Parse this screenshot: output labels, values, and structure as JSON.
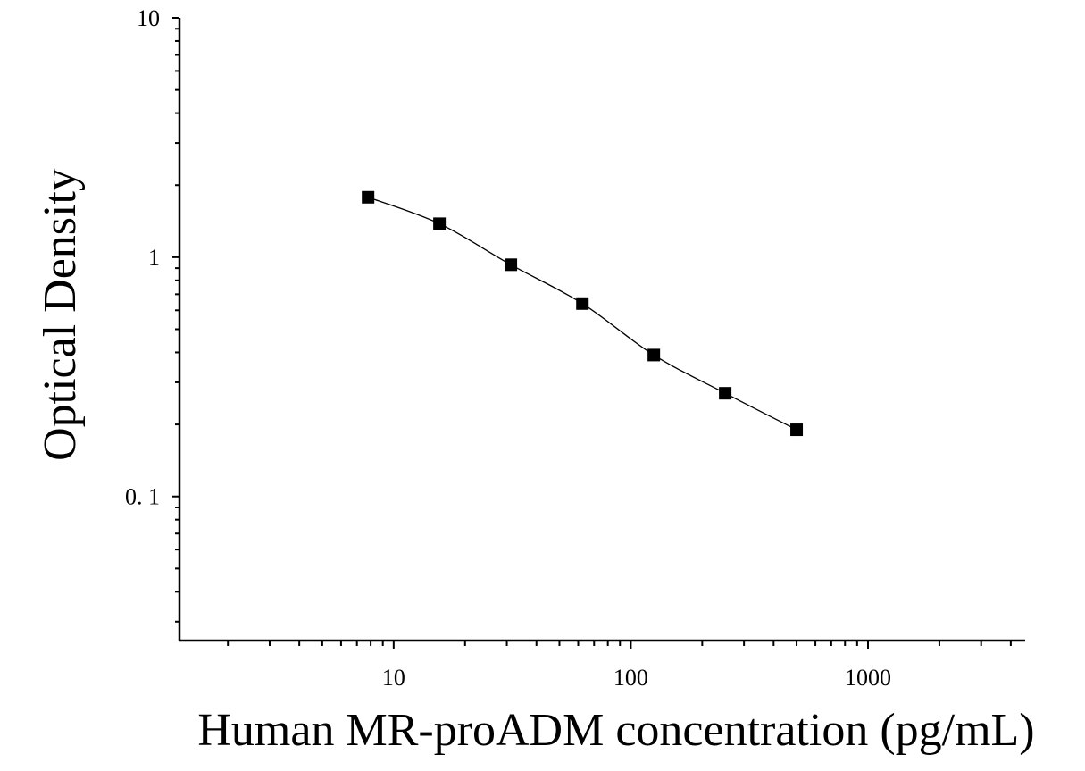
{
  "chart_data": {
    "type": "scatter",
    "title": "",
    "xlabel": "Human MR-proADM concentration (pg/mL)",
    "ylabel": "Optical Density",
    "x_scale": "log",
    "y_scale": "log",
    "xlim": [
      1.25,
      4600
    ],
    "ylim": [
      0.025,
      10
    ],
    "x_ticks": [
      {
        "value": 10,
        "label": "10"
      },
      {
        "value": 100,
        "label": "100"
      },
      {
        "value": 1000,
        "label": "1000"
      }
    ],
    "y_ticks": [
      {
        "value": 10,
        "label": "10"
      },
      {
        "value": 1,
        "label": "1"
      },
      {
        "value": 0.1,
        "label": "0. 1"
      }
    ],
    "grid": false,
    "legend": "none",
    "series": [
      {
        "marker": "square",
        "color": "#000000",
        "points": [
          {
            "x": 7.8,
            "y": 1.78
          },
          {
            "x": 15.6,
            "y": 1.38
          },
          {
            "x": 31.2,
            "y": 0.93
          },
          {
            "x": 62.5,
            "y": 0.64
          },
          {
            "x": 125,
            "y": 0.39
          },
          {
            "x": 250,
            "y": 0.27
          },
          {
            "x": 500,
            "y": 0.19
          }
        ]
      }
    ]
  }
}
